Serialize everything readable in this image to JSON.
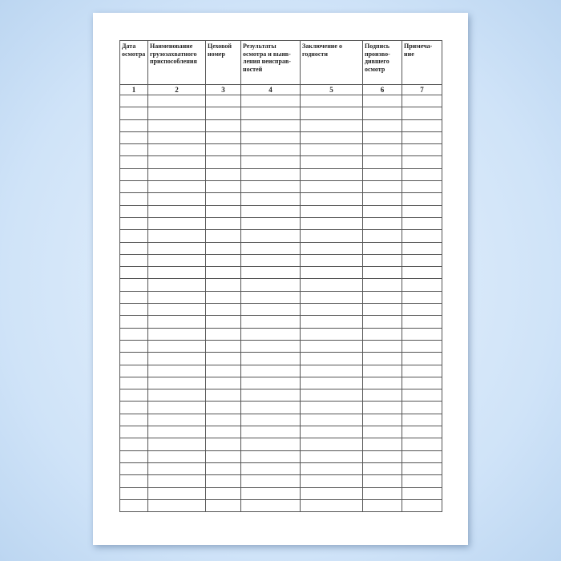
{
  "table": {
    "headers": [
      "Дата осмотра",
      "Наименование грузозахватного приспособления",
      "Цеховой номер",
      "Результаты осмотра и выяв-ления неисправ-ностей",
      "Заключение о годности",
      "Подпись произво-дившего осмотр",
      "Примеча-ние"
    ],
    "column_numbers": [
      "1",
      "2",
      "3",
      "4",
      "5",
      "6",
      "7"
    ],
    "empty_rows": 34
  }
}
